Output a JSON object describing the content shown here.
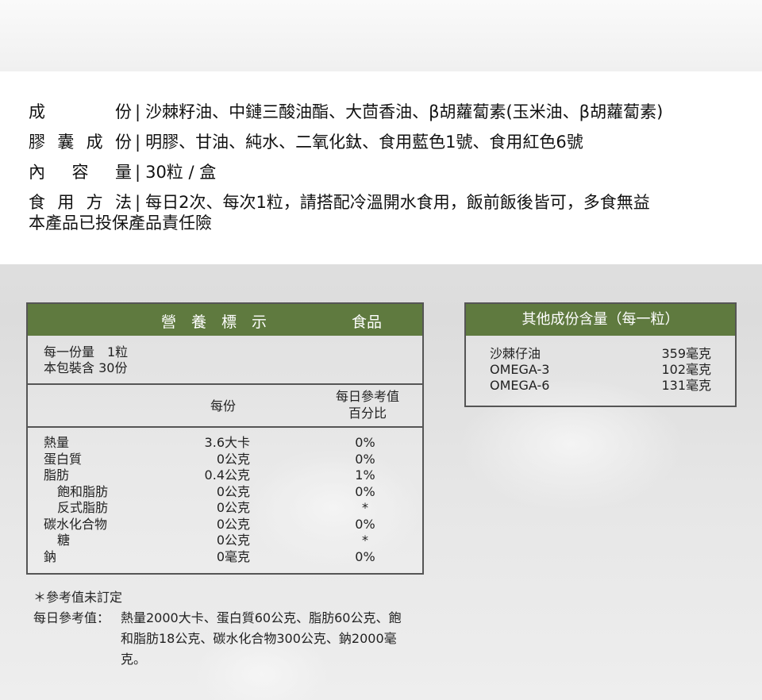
{
  "info": [
    {
      "label": "成　　份",
      "value": "沙棘籽油、中鏈三酸油酯、大茴香油、β胡蘿蔔素(玉米油、β胡蘿蔔素)"
    },
    {
      "label": "膠囊成份",
      "value": "明膠、甘油、純水、二氧化鈦、食用藍色1號、食用紅色6號"
    },
    {
      "label": "內 容 量",
      "value": "30粒 / 盒"
    },
    {
      "label": "食用方法",
      "value": "每日2次、每次1粒，請搭配冷溫開水食用，飯前飯後皆可，多食無益"
    }
  ],
  "insurance": "本產品已投保產品責任險",
  "nutrition": {
    "title": "營　養　標　示",
    "category": "食品",
    "serving": "每一份量　1粒",
    "servings": "本包裝含 30份",
    "col_per": "每份",
    "col_daily_1": "每日參考值",
    "col_daily_2": "百分比",
    "rows": [
      {
        "name": "熱量",
        "per": "3.6大卡",
        "pct": "0%",
        "indent": false
      },
      {
        "name": "蛋白質",
        "per": "0公克",
        "pct": "0%",
        "indent": false
      },
      {
        "name": "脂肪",
        "per": "0.4公克",
        "pct": "1%",
        "indent": false
      },
      {
        "name": "飽和脂肪",
        "per": "0公克",
        "pct": "0%",
        "indent": true
      },
      {
        "name": "反式脂肪",
        "per": "0公克",
        "pct": "*",
        "indent": true
      },
      {
        "name": "碳水化合物",
        "per": "0公克",
        "pct": "0%",
        "indent": false
      },
      {
        "name": "糖",
        "per": "0公克",
        "pct": "*",
        "indent": true
      },
      {
        "name": "鈉",
        "per": "0毫克",
        "pct": "0%",
        "indent": false
      }
    ]
  },
  "other": {
    "title": "其他成份含量（每一粒）",
    "rows": [
      {
        "name": "沙棘仔油",
        "value": "359毫克"
      },
      {
        "name": "OMEGA-3",
        "value": "102毫克"
      },
      {
        "name": "OMEGA-6",
        "value": "131毫克"
      }
    ]
  },
  "notes": {
    "asterisk": "＊參考值未訂定",
    "daily_label": "每日參考值：",
    "daily_1": "熱量2000大卡、蛋白質60公克、脂肪60公克、飽",
    "daily_2": "和脂肪18公克、碳水化合物300公克、鈉2000毫",
    "daily_3": "克。"
  },
  "colors": {
    "header": "#5f7a3f"
  }
}
